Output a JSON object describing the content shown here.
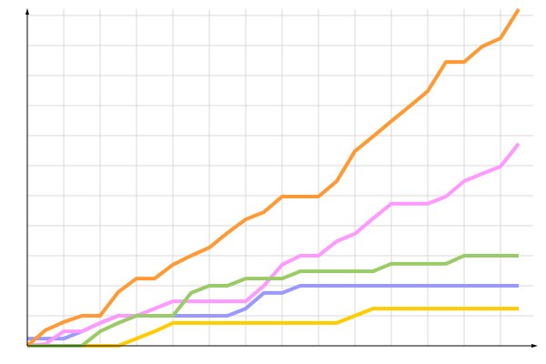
{
  "chart_data": {
    "type": "line",
    "title": "",
    "xlabel": "",
    "ylabel": "",
    "grid": true,
    "x": [
      0,
      1,
      2,
      3,
      4,
      5,
      6,
      7,
      8,
      9,
      10,
      11,
      12,
      13,
      14,
      15,
      16,
      17,
      18,
      19,
      20,
      21,
      22,
      23,
      24,
      25,
      26,
      27
    ],
    "xlim": [
      0,
      27.8
    ],
    "ylim": [
      0,
      11.2
    ],
    "series": [
      {
        "color": "#ffcc00",
        "values": [
          0,
          0,
          0,
          0,
          0,
          0,
          0.24,
          0.48,
          0.76,
          0.76,
          0.76,
          0.76,
          0.76,
          0.76,
          0.76,
          0.76,
          0.76,
          0.76,
          1,
          1.24,
          1.24,
          1.24,
          1.24,
          1.24,
          1.24,
          1.24,
          1.24,
          1.24
        ]
      },
      {
        "color": "#9999ff",
        "values": [
          0.24,
          0.24,
          0.24,
          0.48,
          0.76,
          1,
          1,
          1,
          1,
          1,
          1,
          1,
          1.24,
          1.76,
          1.76,
          2,
          2,
          2,
          2,
          2,
          2,
          2,
          2,
          2,
          2,
          2,
          2,
          2
        ]
      },
      {
        "color": "#ff99ff",
        "values": [
          0,
          0.06,
          0.48,
          0.48,
          0.76,
          1,
          1,
          1.24,
          1.48,
          1.48,
          1.48,
          1.48,
          1.48,
          2,
          2.7,
          3,
          3,
          3.48,
          3.73,
          4.24,
          4.73,
          4.73,
          4.73,
          4.97,
          5.48,
          5.73,
          5.97,
          6.73
        ]
      },
      {
        "color": "#99cc66",
        "values": [
          0,
          0,
          0,
          0,
          0.48,
          0.76,
          1,
          1,
          1,
          1.76,
          2,
          2,
          2.24,
          2.24,
          2.24,
          2.48,
          2.48,
          2.48,
          2.48,
          2.48,
          2.73,
          2.73,
          2.73,
          2.73,
          3,
          3,
          3,
          3
        ]
      },
      {
        "color": "#ff9933",
        "values": [
          0,
          0.52,
          0.79,
          1,
          1,
          1.79,
          2.24,
          2.24,
          2.7,
          3,
          3.27,
          3.76,
          4.21,
          4.45,
          4.97,
          4.97,
          4.97,
          5.48,
          6.48,
          6.97,
          7.48,
          7.97,
          8.48,
          9.45,
          9.45,
          9.97,
          10.24,
          11.21
        ]
      }
    ]
  }
}
